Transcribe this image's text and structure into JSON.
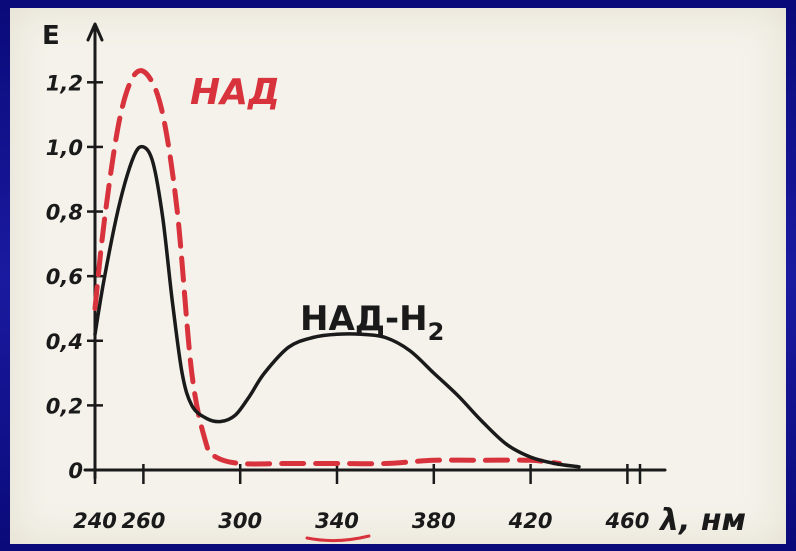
{
  "chart_data": {
    "type": "line",
    "title": "",
    "xlabel": "λ, нм",
    "ylabel": "E",
    "xlim": [
      240,
      490
    ],
    "ylim": [
      0,
      1.3
    ],
    "x_ticks": [
      {
        "value": 240,
        "label": "240"
      },
      {
        "value": 260,
        "label": "260"
      },
      {
        "value": 300,
        "label": "300"
      },
      {
        "value": 340,
        "label": "340"
      },
      {
        "value": 380,
        "label": "380"
      },
      {
        "value": 420,
        "label": "420"
      },
      {
        "value": 460,
        "label": "460"
      }
    ],
    "y_ticks": [
      {
        "value": 0,
        "label": "0"
      },
      {
        "value": 0.2,
        "label": "0,2"
      },
      {
        "value": 0.4,
        "label": "0,4"
      },
      {
        "value": 0.6,
        "label": "0,6"
      },
      {
        "value": 0.8,
        "label": "0,8"
      },
      {
        "value": 1.0,
        "label": "1,0"
      },
      {
        "value": 1.2,
        "label": "1,2"
      }
    ],
    "grid": false,
    "legend": "none",
    "series": [
      {
        "name": "НАД",
        "color": "#d8323c",
        "style": "dashed",
        "x": [
          240,
          244,
          250,
          256,
          262,
          268,
          274,
          280,
          286,
          290,
          300,
          320,
          340,
          360,
          380,
          400,
          420,
          432
        ],
        "y": [
          0.5,
          0.78,
          1.08,
          1.22,
          1.22,
          1.1,
          0.8,
          0.3,
          0.08,
          0.04,
          0.02,
          0.02,
          0.02,
          0.02,
          0.03,
          0.03,
          0.03,
          0.02
        ]
      },
      {
        "name": "НАД-Н2",
        "color": "#1a1a1a",
        "style": "solid",
        "x": [
          240,
          244,
          250,
          256,
          260,
          264,
          268,
          272,
          276,
          280,
          286,
          292,
          298,
          304,
          310,
          320,
          330,
          340,
          350,
          360,
          370,
          380,
          390,
          400,
          410,
          420,
          430,
          440
        ],
        "y": [
          0.42,
          0.6,
          0.82,
          0.97,
          1.0,
          0.95,
          0.78,
          0.52,
          0.3,
          0.2,
          0.16,
          0.15,
          0.17,
          0.23,
          0.3,
          0.38,
          0.41,
          0.42,
          0.42,
          0.41,
          0.37,
          0.3,
          0.23,
          0.15,
          0.08,
          0.04,
          0.02,
          0.01
        ]
      }
    ],
    "annotations": {
      "red_label": "НАД",
      "black_label": "НАД-Н",
      "black_label_sub": "2"
    }
  }
}
